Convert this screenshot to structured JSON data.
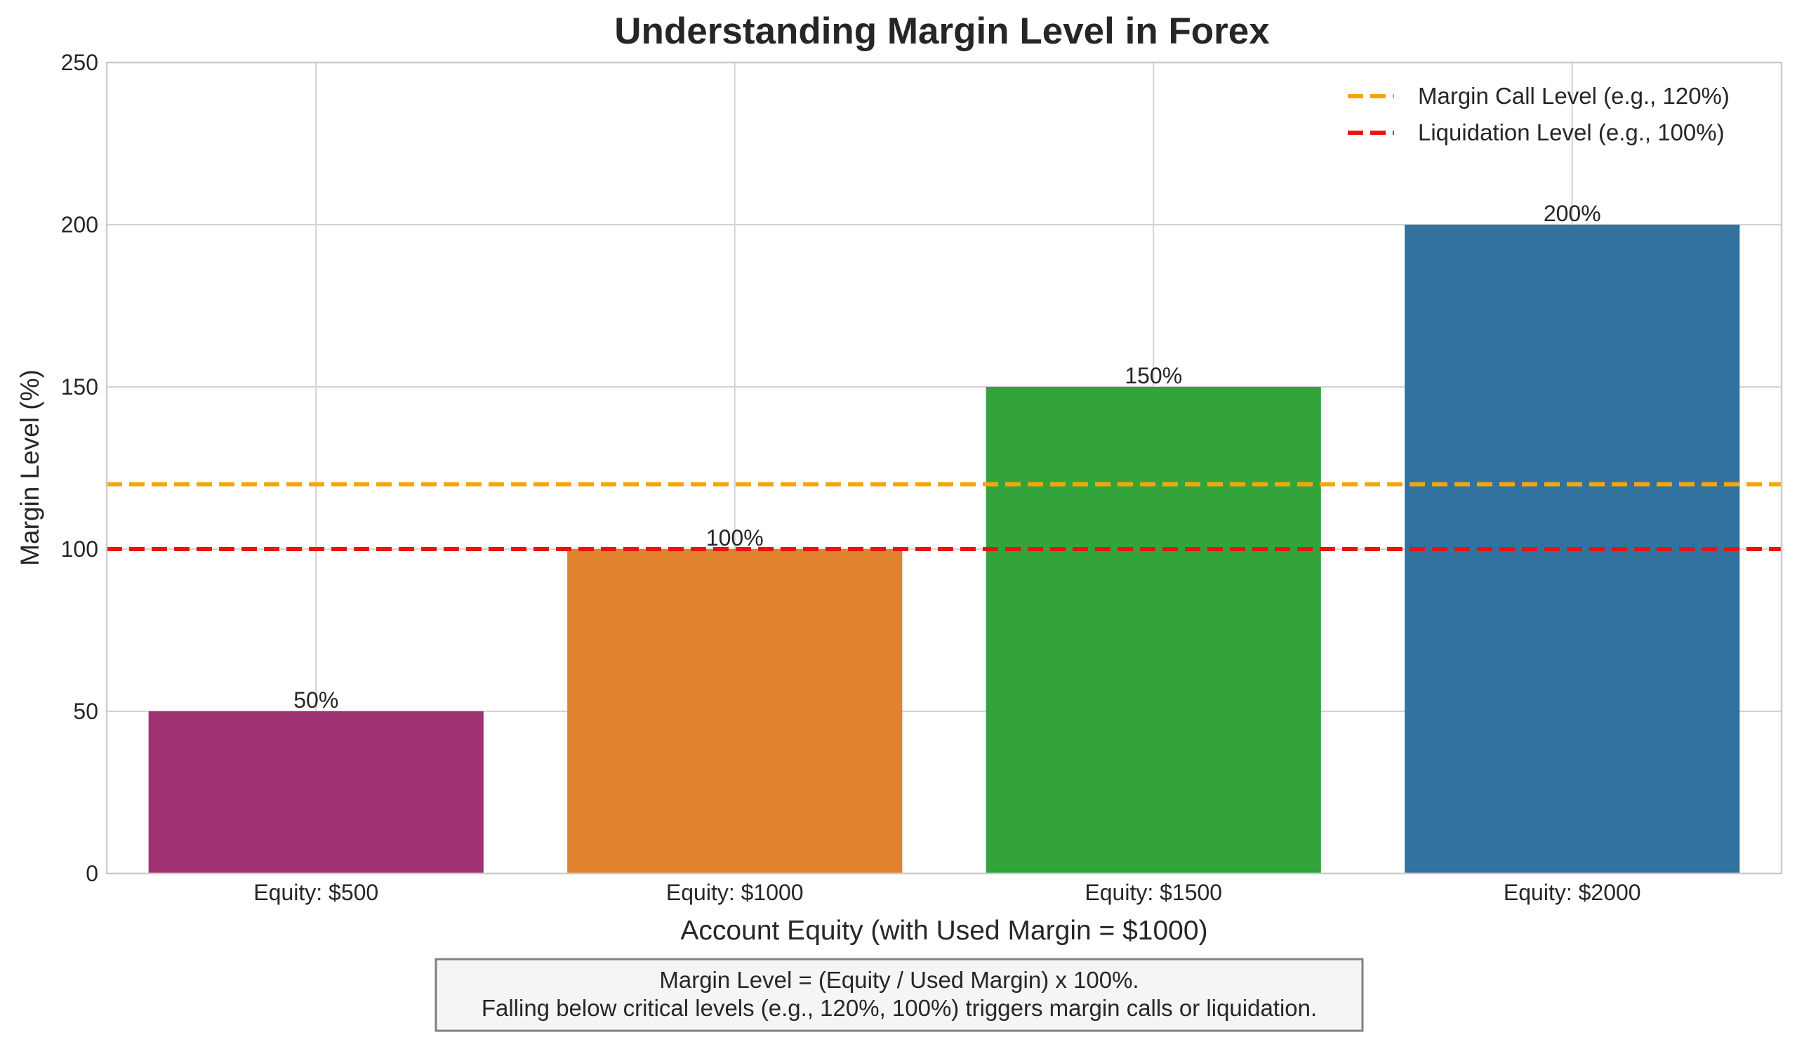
{
  "chart_data": {
    "type": "bar",
    "title": "Understanding Margin Level in Forex",
    "xlabel": "Account Equity (with Used Margin = $1000)",
    "ylabel": "Margin Level (%)",
    "ylim": [
      0,
      250
    ],
    "yticks": [
      "0",
      "50",
      "100",
      "150",
      "200",
      "250"
    ],
    "categories": [
      "Equity: $500",
      "Equity: $1000",
      "Equity: $1500",
      "Equity: $2000"
    ],
    "values": [
      50,
      100,
      150,
      200
    ],
    "value_labels": [
      "50%",
      "100%",
      "150%",
      "200%"
    ],
    "bar_colors": [
      "#a03272",
      "#e0822e",
      "#33a33c",
      "#31729f"
    ],
    "grid": true,
    "reference_lines": [
      {
        "name": "Margin Call Level (e.g., 120%)",
        "value": 120,
        "color": "#f5a60a",
        "style": "dashed"
      },
      {
        "name": "Liquidation Level (e.g., 100%)",
        "value": 100,
        "color": "#ee1111",
        "style": "dashed"
      }
    ],
    "legend_position": "top-right",
    "annotation": {
      "line1": "Margin Level = (Equity / Used Margin) x 100%.",
      "line2": "Falling below critical levels (e.g., 120%, 100%) triggers margin calls or liquidation."
    }
  }
}
